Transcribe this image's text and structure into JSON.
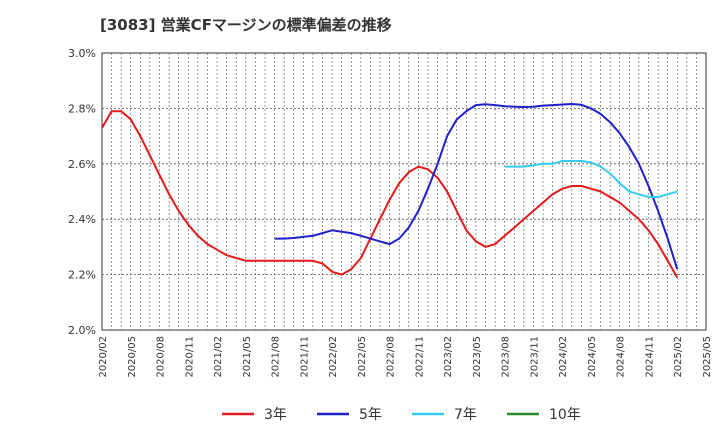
{
  "chart_data": {
    "type": "line",
    "title": "[3083]  営業CFマージンの標準偏差の推移",
    "xlabel": "",
    "ylabel": "",
    "ylim": [
      0.02,
      0.03
    ],
    "y_ticks": [
      "2.0%",
      "2.2%",
      "2.4%",
      "2.6%",
      "2.8%",
      "3.0%"
    ],
    "x_ticks": [
      "2020/02",
      "2020/05",
      "2020/08",
      "2020/11",
      "2021/02",
      "2021/05",
      "2021/08",
      "2021/11",
      "2022/02",
      "2022/05",
      "2022/08",
      "2022/11",
      "2023/02",
      "2023/05",
      "2023/08",
      "2023/11",
      "2024/02",
      "2024/05",
      "2024/08",
      "2024/11",
      "2025/02",
      "2025/05"
    ],
    "grid": true,
    "legend_position": "bottom",
    "series": [
      {
        "name": "3年",
        "color": "#e31a1c",
        "x": [
          "2020/02",
          "2020/03",
          "2020/04",
          "2020/05",
          "2020/06",
          "2020/07",
          "2020/08",
          "2020/09",
          "2020/10",
          "2020/11",
          "2020/12",
          "2021/01",
          "2021/02",
          "2021/03",
          "2021/04",
          "2021/05",
          "2021/06",
          "2021/07",
          "2021/08",
          "2021/09",
          "2021/10",
          "2021/11",
          "2021/12",
          "2022/01",
          "2022/02",
          "2022/03",
          "2022/04",
          "2022/05",
          "2022/06",
          "2022/07",
          "2022/08",
          "2022/09",
          "2022/10",
          "2022/11",
          "2022/12",
          "2023/01",
          "2023/02",
          "2023/03",
          "2023/04",
          "2023/05",
          "2023/06",
          "2023/07",
          "2023/08",
          "2023/09",
          "2023/10",
          "2023/11",
          "2023/12",
          "2024/01",
          "2024/02",
          "2024/03",
          "2024/04",
          "2024/05",
          "2024/06",
          "2024/07",
          "2024/08",
          "2024/09",
          "2024/10",
          "2024/11",
          "2024/12",
          "2025/01",
          "2025/02"
        ],
        "values": [
          0.0273,
          0.0279,
          0.0279,
          0.0276,
          0.027,
          0.0263,
          0.0256,
          0.0249,
          0.0243,
          0.0238,
          0.0234,
          0.0231,
          0.0229,
          0.0227,
          0.0226,
          0.0225,
          0.0225,
          0.0225,
          0.0225,
          0.0225,
          0.0225,
          0.0225,
          0.0225,
          0.0224,
          0.0221,
          0.022,
          0.0222,
          0.0226,
          0.0233,
          0.024,
          0.0247,
          0.0253,
          0.0257,
          0.0259,
          0.0258,
          0.0255,
          0.025,
          0.0243,
          0.0236,
          0.0232,
          0.023,
          0.0231,
          0.0234,
          0.0237,
          0.024,
          0.0243,
          0.0246,
          0.0249,
          0.0251,
          0.0252,
          0.0252,
          0.0251,
          0.025,
          0.0248,
          0.0246,
          0.0243,
          0.024,
          0.0236,
          0.0231,
          0.0225,
          0.0219
        ]
      },
      {
        "name": "5年",
        "color": "#1f1fcc",
        "x": [
          "2021/08",
          "2021/09",
          "2021/10",
          "2021/11",
          "2021/12",
          "2022/01",
          "2022/02",
          "2022/03",
          "2022/04",
          "2022/05",
          "2022/06",
          "2022/07",
          "2022/08",
          "2022/09",
          "2022/10",
          "2022/11",
          "2022/12",
          "2023/01",
          "2023/02",
          "2023/03",
          "2023/04",
          "2023/05",
          "2023/06",
          "2023/07",
          "2023/08",
          "2023/09",
          "2023/10",
          "2023/11",
          "2023/12",
          "2024/01",
          "2024/02",
          "2024/03",
          "2024/04",
          "2024/05",
          "2024/06",
          "2024/07",
          "2024/08",
          "2024/09",
          "2024/10",
          "2024/11",
          "2024/12",
          "2025/01",
          "2025/02"
        ],
        "values": [
          0.0233,
          0.0233,
          0.02332,
          0.02336,
          0.0234,
          0.0235,
          0.0236,
          0.02355,
          0.0235,
          0.0234,
          0.0233,
          0.0232,
          0.0231,
          0.0233,
          0.0237,
          0.0243,
          0.0251,
          0.026,
          0.027,
          0.0276,
          0.0279,
          0.02812,
          0.02815,
          0.02812,
          0.02808,
          0.02806,
          0.02805,
          0.02806,
          0.0281,
          0.02812,
          0.02814,
          0.02816,
          0.02813,
          0.028,
          0.0278,
          0.0275,
          0.0271,
          0.0266,
          0.026,
          0.0252,
          0.0243,
          0.0233,
          0.0222
        ]
      },
      {
        "name": "7年",
        "color": "#33ccee",
        "x": [
          "2023/08",
          "2023/09",
          "2023/10",
          "2023/11",
          "2023/12",
          "2024/01",
          "2024/02",
          "2024/03",
          "2024/04",
          "2024/05",
          "2024/06",
          "2024/07",
          "2024/08",
          "2024/09",
          "2024/10",
          "2024/11",
          "2024/12",
          "2025/01",
          "2025/02"
        ],
        "values": [
          0.0259,
          0.0259,
          0.0259,
          0.02595,
          0.026,
          0.026,
          0.0261,
          0.0261,
          0.0261,
          0.02605,
          0.0259,
          0.02565,
          0.0253,
          0.025,
          0.0249,
          0.0248,
          0.0248,
          0.0249,
          0.025
        ]
      },
      {
        "name": "10年",
        "color": "#2a8a2a",
        "x": [],
        "values": []
      }
    ]
  }
}
